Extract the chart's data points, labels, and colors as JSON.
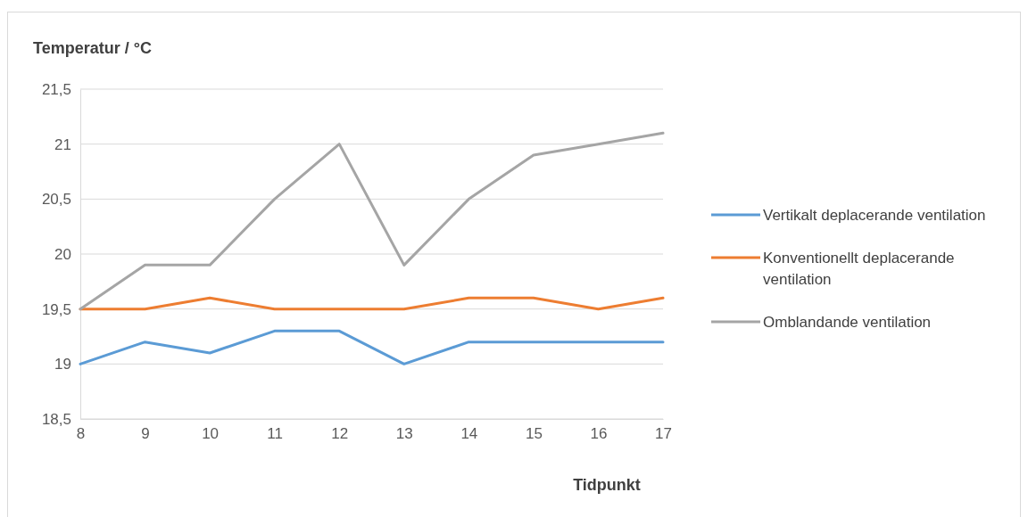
{
  "chart_data": {
    "type": "line",
    "xlabel": "Tidpunkt",
    "ylabel": "Temperatur / °C",
    "x": [
      8,
      9,
      10,
      11,
      12,
      13,
      14,
      15,
      16,
      17
    ],
    "xlim": [
      8,
      17
    ],
    "xticks": [
      8,
      9,
      10,
      11,
      12,
      13,
      14,
      15,
      16,
      17
    ],
    "ylim": [
      18.5,
      21.5
    ],
    "yticks": [
      {
        "value": 18.5,
        "label": "18,5"
      },
      19,
      {
        "value": 19.5,
        "label": "19,5"
      },
      20,
      {
        "value": 20.5,
        "label": "20,5"
      },
      21,
      {
        "value": 21.5,
        "label": "21,5"
      }
    ],
    "grid": "y",
    "legend": "right",
    "marker": "none",
    "line_style": "solid",
    "series": [
      {
        "name": "Vertikalt deplacerande ventilation",
        "color": "#5b9bd5",
        "values": [
          19.0,
          19.2,
          19.1,
          19.3,
          19.3,
          19.0,
          19.2,
          19.2,
          19.2,
          19.2
        ]
      },
      {
        "name": "Konventionellt deplacerande ventilation",
        "color": "#ed7d31",
        "values": [
          19.5,
          19.5,
          19.6,
          19.5,
          19.5,
          19.5,
          19.6,
          19.6,
          19.5,
          19.6
        ]
      },
      {
        "name": "Omblandande ventilation",
        "color": "#a5a5a5",
        "values": [
          19.5,
          19.9,
          19.9,
          20.5,
          21.0,
          19.9,
          20.5,
          20.9,
          21.0,
          21.1
        ]
      }
    ]
  }
}
